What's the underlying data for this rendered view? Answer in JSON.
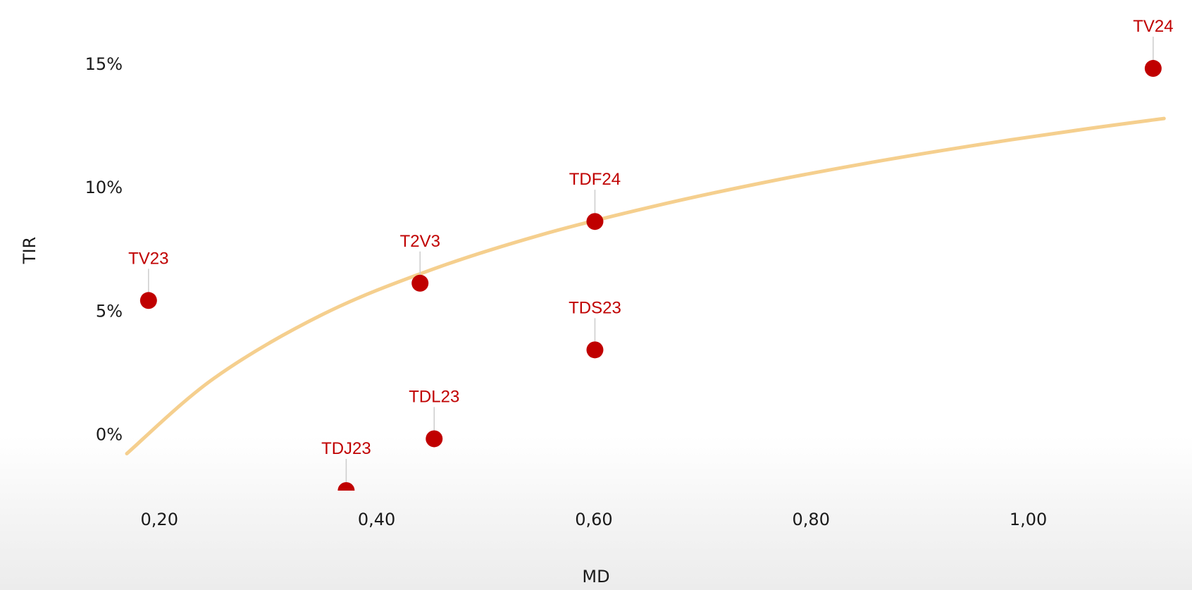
{
  "chart_data": {
    "type": "scatter",
    "title": "",
    "xlabel": "MD",
    "ylabel": "TIR",
    "xlim": [
      0.17,
      1.13
    ],
    "ylim": [
      -2.3,
      16
    ],
    "x_ticks": [
      {
        "value": 0.2,
        "label": "0,20"
      },
      {
        "value": 0.4,
        "label": "0,40"
      },
      {
        "value": 0.6,
        "label": "0,60"
      },
      {
        "value": 0.8,
        "label": "0,80"
      },
      {
        "value": 1.0,
        "label": "1,00"
      }
    ],
    "y_ticks": [
      {
        "value": 0,
        "label": "0%"
      },
      {
        "value": 5,
        "label": "5%"
      },
      {
        "value": 10,
        "label": "10%"
      },
      {
        "value": 15,
        "label": "15%"
      }
    ],
    "grid": false,
    "legend": "none",
    "series": [
      {
        "points": [
          {
            "label": "TV23",
            "x": 0.19,
            "y": 5.4
          },
          {
            "label": "TDJ23",
            "x": 0.372,
            "y": -2.3
          },
          {
            "label": "T2V3",
            "x": 0.44,
            "y": 6.1
          },
          {
            "label": "TDL23",
            "x": 0.453,
            "y": -0.2
          },
          {
            "label": "TDF24",
            "x": 0.601,
            "y": 8.6
          },
          {
            "label": "TDS23",
            "x": 0.601,
            "y": 3.4
          },
          {
            "label": "TV24",
            "x": 1.115,
            "y": 14.8
          }
        ]
      }
    ],
    "trend": {
      "type": "logarithmic",
      "x": [
        0.17,
        0.25,
        0.35,
        0.45,
        0.55,
        0.65,
        0.75,
        0.85,
        0.95,
        1.05,
        1.125
      ],
      "y": [
        -0.8,
        2.24,
        4.83,
        6.64,
        8.04,
        9.16,
        10.12,
        10.95,
        11.68,
        12.33,
        12.77
      ]
    },
    "colors": {
      "points": "#c00000",
      "labels": "#c00000",
      "trend": "#f5cf8e",
      "leader": "#cccccc",
      "text": "#1a1a1a"
    }
  }
}
